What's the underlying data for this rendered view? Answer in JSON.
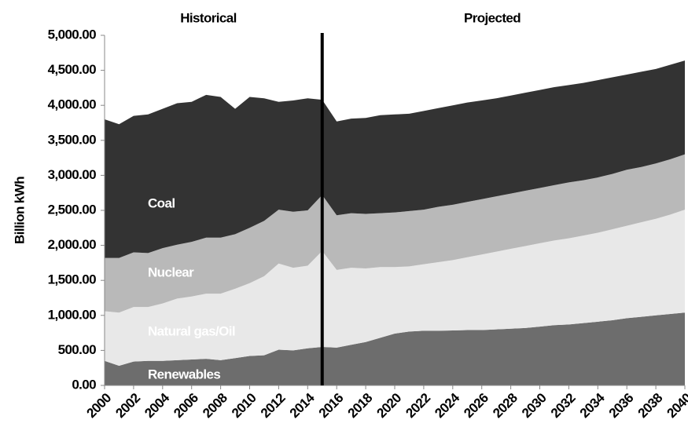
{
  "chart_data": {
    "type": "stacked_area",
    "y_label": "Billion kWh",
    "annotations": [
      "Historical",
      "Projected"
    ],
    "divider": 2015,
    "x": [
      2000,
      2001,
      2002,
      2003,
      2004,
      2005,
      2006,
      2007,
      2008,
      2009,
      2010,
      2011,
      2012,
      2013,
      2014,
      2015,
      2016,
      2017,
      2018,
      2019,
      2020,
      2021,
      2022,
      2023,
      2024,
      2025,
      2026,
      2027,
      2028,
      2029,
      2030,
      2031,
      2032,
      2033,
      2034,
      2035,
      2036,
      2037,
      2038,
      2039,
      2040
    ],
    "xlim": [
      2000,
      2040
    ],
    "xticks": [
      2000,
      2002,
      2004,
      2006,
      2008,
      2010,
      2012,
      2014,
      2016,
      2018,
      2020,
      2022,
      2024,
      2026,
      2028,
      2030,
      2032,
      2034,
      2036,
      2038,
      2040
    ],
    "ylim": [
      0,
      5000
    ],
    "yticks": [
      {
        "value": 0,
        "label": "0.00"
      },
      {
        "value": 500,
        "label": "500.00"
      },
      {
        "value": 1000,
        "label": "1,000.00"
      },
      {
        "value": 1500,
        "label": "1,500.00"
      },
      {
        "value": 2000,
        "label": "2,000.00"
      },
      {
        "value": 2500,
        "label": "2,500.00"
      },
      {
        "value": 3000,
        "label": "3,000.00"
      },
      {
        "value": 3500,
        "label": "3,500.00"
      },
      {
        "value": 4000,
        "label": "4,000.00"
      },
      {
        "value": 4500,
        "label": "4,500.00"
      },
      {
        "value": 5000,
        "label": "5,000.00"
      }
    ],
    "series": [
      {
        "name": "Renewables",
        "color": "#6d6d6d",
        "values": [
          350,
          280,
          340,
          350,
          350,
          360,
          370,
          380,
          360,
          390,
          420,
          430,
          510,
          500,
          530,
          550,
          540,
          580,
          620,
          680,
          740,
          770,
          780,
          780,
          785,
          790,
          790,
          800,
          810,
          820,
          840,
          860,
          870,
          890,
          910,
          930,
          960,
          980,
          1000,
          1020,
          1040
        ]
      },
      {
        "name": "Natural gas/Oil",
        "color": "#e8e8e8",
        "values": [
          710,
          760,
          780,
          770,
          820,
          880,
          900,
          930,
          950,
          990,
          1040,
          1130,
          1230,
          1180,
          1180,
          1370,
          1110,
          1100,
          1050,
          1010,
          950,
          930,
          950,
          980,
          1005,
          1040,
          1080,
          1110,
          1140,
          1170,
          1190,
          1210,
          1230,
          1250,
          1270,
          1300,
          1320,
          1350,
          1380,
          1420,
          1470
        ]
      },
      {
        "name": "Nuclear",
        "color": "#b9b9b9",
        "values": [
          760,
          780,
          780,
          770,
          790,
          770,
          780,
          800,
          800,
          780,
          790,
          790,
          770,
          800,
          790,
          800,
          780,
          780,
          780,
          770,
          780,
          790,
          780,
          790,
          790,
          790,
          790,
          790,
          790,
          790,
          790,
          790,
          800,
          790,
          790,
          790,
          800,
          790,
          790,
          790,
          790
        ]
      },
      {
        "name": "Coal",
        "color": "#333333",
        "values": [
          1980,
          1910,
          1950,
          1980,
          1990,
          2020,
          2000,
          2040,
          2010,
          1790,
          1870,
          1750,
          1540,
          1590,
          1600,
          1360,
          1340,
          1350,
          1370,
          1400,
          1400,
          1390,
          1410,
          1410,
          1420,
          1420,
          1410,
          1400,
          1400,
          1400,
          1400,
          1400,
          1390,
          1390,
          1390,
          1380,
          1360,
          1360,
          1350,
          1350,
          1340
        ]
      }
    ]
  }
}
